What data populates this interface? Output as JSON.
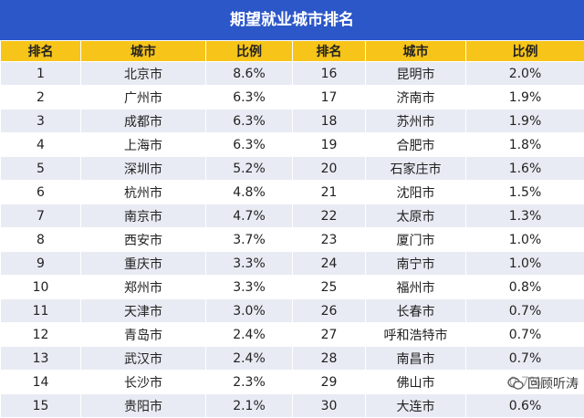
{
  "title": "期望就业城市排名",
  "table": {
    "header": [
      "排名",
      "城市",
      "比例",
      "排名",
      "城市",
      "比例"
    ],
    "rows": [
      [
        "1",
        "北京市",
        "8.6%",
        "16",
        "昆明市",
        "2.0%"
      ],
      [
        "2",
        "广州市",
        "6.3%",
        "17",
        "济南市",
        "1.9%"
      ],
      [
        "3",
        "成都市",
        "6.3%",
        "18",
        "苏州市",
        "1.9%"
      ],
      [
        "4",
        "上海市",
        "6.3%",
        "19",
        "合肥市",
        "1.8%"
      ],
      [
        "5",
        "深圳市",
        "5.2%",
        "20",
        "石家庄市",
        "1.6%"
      ],
      [
        "6",
        "杭州市",
        "4.8%",
        "21",
        "沈阳市",
        "1.5%"
      ],
      [
        "7",
        "南京市",
        "4.7%",
        "22",
        "太原市",
        "1.3%"
      ],
      [
        "8",
        "西安市",
        "3.7%",
        "23",
        "厦门市",
        "1.0%"
      ],
      [
        "9",
        "重庆市",
        "3.3%",
        "24",
        "南宁市",
        "1.0%"
      ],
      [
        "10",
        "郑州市",
        "3.3%",
        "25",
        "福州市",
        "0.8%"
      ],
      [
        "11",
        "天津市",
        "3.0%",
        "26",
        "长春市",
        "0.7%"
      ],
      [
        "12",
        "青岛市",
        "2.4%",
        "27",
        "呼和浩特市",
        "0.7%"
      ],
      [
        "13",
        "武汉市",
        "2.4%",
        "28",
        "南昌市",
        "0.7%"
      ],
      [
        "14",
        "长沙市",
        "2.3%",
        "29",
        "佛山市",
        "0.7%"
      ],
      [
        "15",
        "贵阳市",
        "2.1%",
        "30",
        "大连市",
        "0.6%"
      ]
    ]
  },
  "watermark": "回顾听涛"
}
